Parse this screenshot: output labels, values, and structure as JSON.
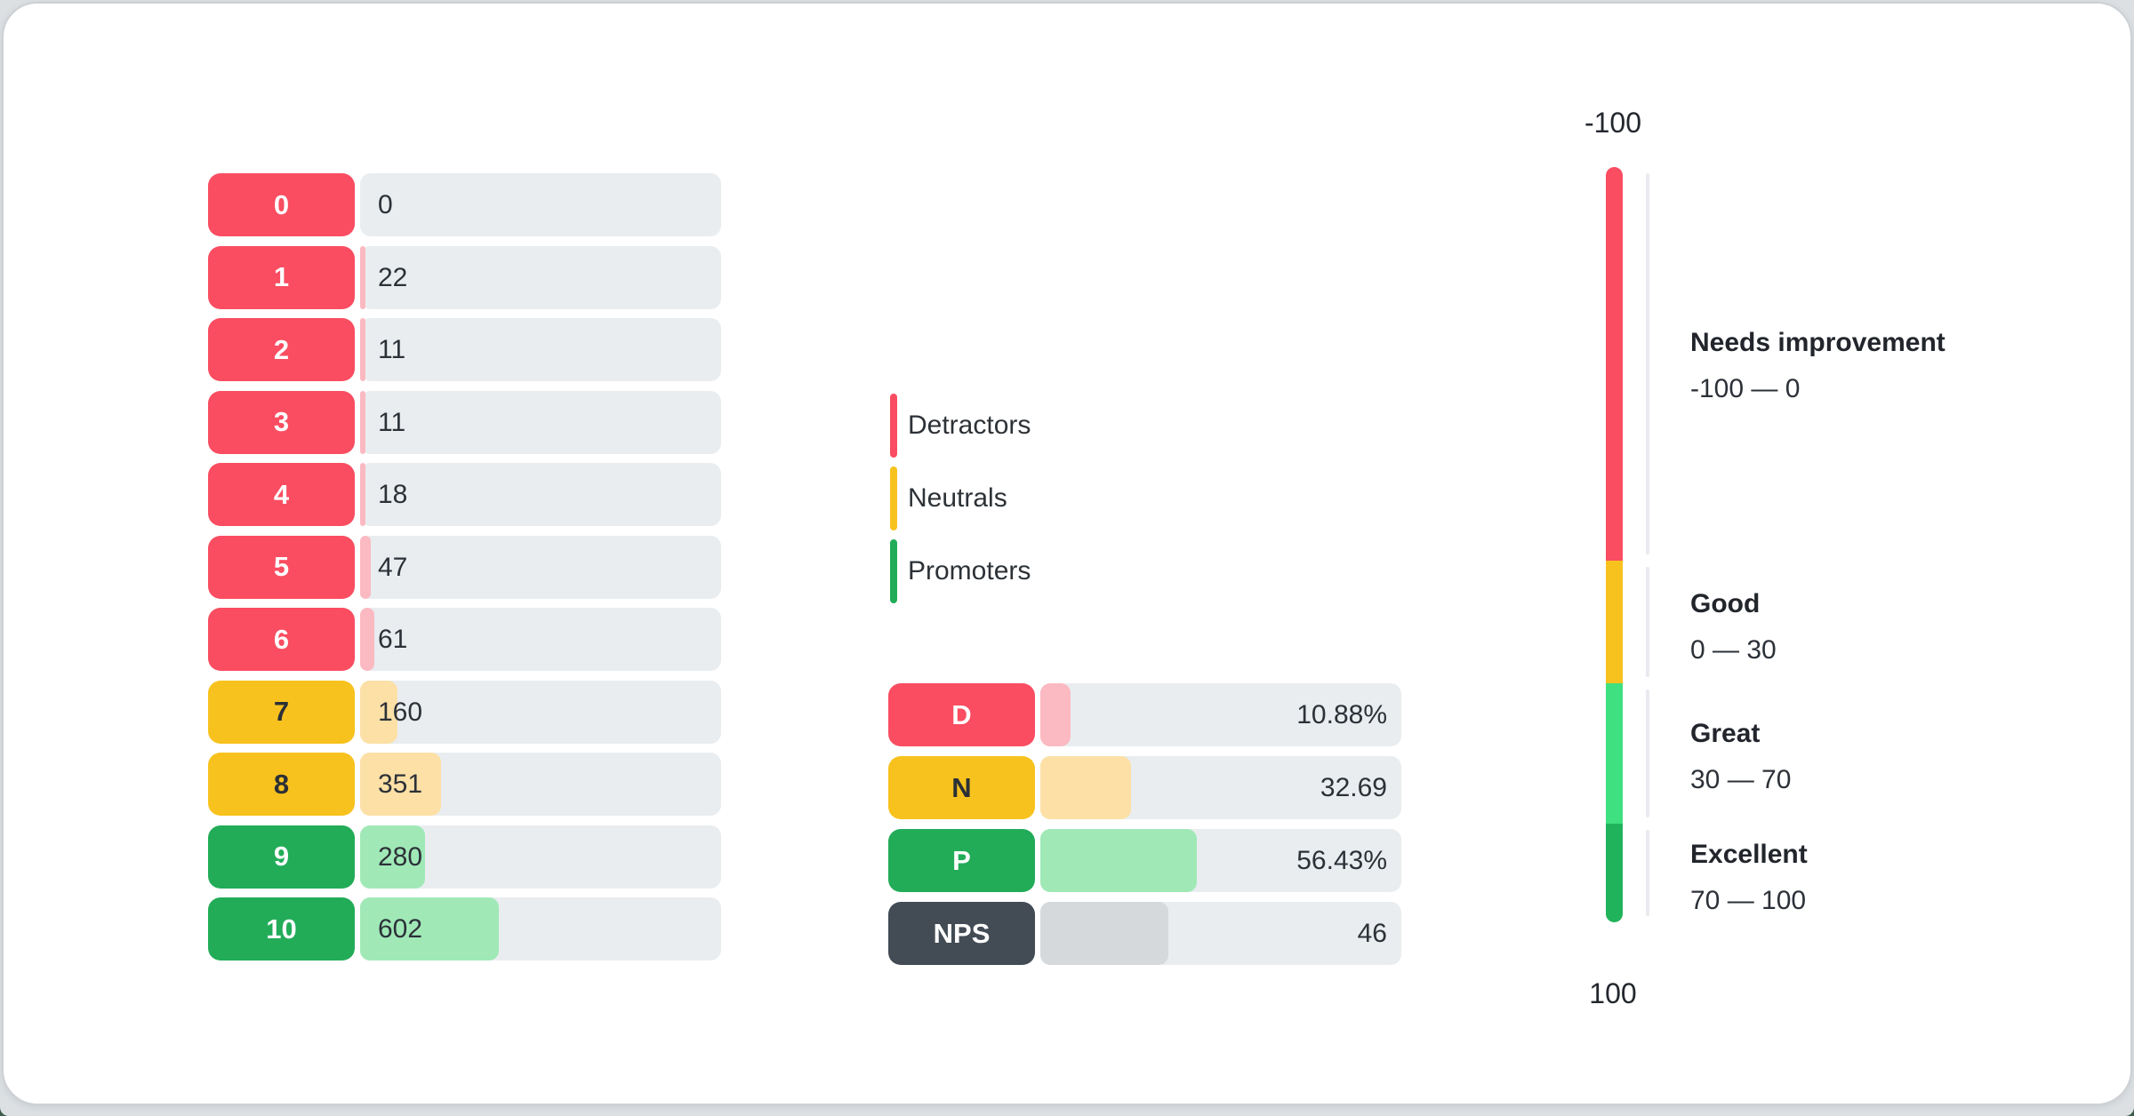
{
  "colors": {
    "detractor": "#FA4D61",
    "detractor_light": "#FBB9C1",
    "neutral": "#F8C21E",
    "neutral_light": "#FCE0A6",
    "promoter": "#22AC58",
    "promoter_light": "#A0E9B7",
    "nps": "#434B54",
    "nps_light": "#D5D9DC",
    "gauge_great": "#3FE07F",
    "gauge_excellent": "#21B35C",
    "track": "#E9EDF0",
    "chip_text_light": "#FFFFFF",
    "chip_text_dark": "#2B3036"
  },
  "distribution": {
    "rows": [
      {
        "score": "0",
        "value": "0",
        "group": "detractor",
        "fill_pct": 0
      },
      {
        "score": "1",
        "value": "22",
        "group": "detractor",
        "fill_pct": 1.41
      },
      {
        "score": "2",
        "value": "11",
        "group": "detractor",
        "fill_pct": 0.7
      },
      {
        "score": "3",
        "value": "11",
        "group": "detractor",
        "fill_pct": 0.7
      },
      {
        "score": "4",
        "value": "18",
        "group": "detractor",
        "fill_pct": 1.15
      },
      {
        "score": "5",
        "value": "47",
        "group": "detractor",
        "fill_pct": 3.01
      },
      {
        "score": "6",
        "value": "61",
        "group": "detractor",
        "fill_pct": 3.9
      },
      {
        "score": "7",
        "value": "160",
        "group": "neutral",
        "fill_pct": 10.24
      },
      {
        "score": "8",
        "value": "351",
        "group": "neutral",
        "fill_pct": 22.46
      },
      {
        "score": "9",
        "value": "280",
        "group": "promoter",
        "fill_pct": 17.91
      },
      {
        "score": "10",
        "value": "602",
        "group": "promoter",
        "fill_pct": 38.52
      }
    ]
  },
  "legend": {
    "items": [
      {
        "label": "Detractors",
        "group": "detractor"
      },
      {
        "label": "Neutrals",
        "group": "neutral"
      },
      {
        "label": "Promoters",
        "group": "promoter"
      }
    ]
  },
  "summary": {
    "rows": [
      {
        "label": "D",
        "value": "10.88%",
        "group": "detractor",
        "fill_pct": 8.4
      },
      {
        "label": "N",
        "value": "32.69",
        "group": "neutral",
        "fill_pct": 25.1
      },
      {
        "label": "P",
        "value": "56.43%",
        "group": "promoter",
        "fill_pct": 43.4
      },
      {
        "label": "NPS",
        "value": "46",
        "group": "nps",
        "fill_pct": 35.4
      }
    ]
  },
  "gauge": {
    "top_label": "-100",
    "bottom_label": "100",
    "segments": [
      {
        "group": "detractor",
        "pct": 52.1
      },
      {
        "group": "neutral",
        "pct": 16.2
      },
      {
        "group": "gauge_great",
        "pct": 18.6
      },
      {
        "group": "gauge_excellent",
        "pct": 13.1
      }
    ],
    "regions": [
      {
        "title": "Needs improvement",
        "range": "-100 — 0"
      },
      {
        "title": "Good",
        "range": "0 — 30"
      },
      {
        "title": "Great",
        "range": "30 — 70"
      },
      {
        "title": "Excellent",
        "range": "70 — 100"
      }
    ]
  },
  "chart_data": [
    {
      "type": "bar",
      "orientation": "horizontal",
      "categories": [
        "0",
        "1",
        "2",
        "3",
        "4",
        "5",
        "6",
        "7",
        "8",
        "9",
        "10"
      ],
      "values": [
        0,
        22,
        11,
        11,
        18,
        47,
        61,
        160,
        351,
        280,
        602
      ],
      "value_labels": [
        "0",
        "22",
        "11",
        "11",
        "18",
        "47",
        "61",
        "160",
        "351",
        "280",
        "602"
      ],
      "color_groups": [
        "detractors",
        "detractors",
        "detractors",
        "detractors",
        "detractors",
        "detractors",
        "detractors",
        "neutrals",
        "neutrals",
        "promoters",
        "promoters"
      ],
      "legend": [
        "Detractors",
        "Neutrals",
        "Promoters"
      ],
      "legend_position": "middle-column-left",
      "grid": false
    },
    {
      "type": "bar",
      "orientation": "horizontal",
      "categories": [
        "D",
        "N",
        "P",
        "NPS"
      ],
      "values": [
        10.88,
        32.69,
        56.43,
        46
      ],
      "value_labels": [
        "10.88%",
        "32.69",
        "56.43%",
        "46"
      ],
      "grid": false
    },
    {
      "type": "gauge",
      "orientation": "vertical",
      "axis_range": [
        -100,
        100
      ],
      "tick_labels": [
        "-100",
        "100"
      ],
      "regions": [
        {
          "label": "Needs improvement",
          "from": -100,
          "to": 0
        },
        {
          "label": "Good",
          "from": 0,
          "to": 30
        },
        {
          "label": "Great",
          "from": 30,
          "to": 70
        },
        {
          "label": "Excellent",
          "from": 70,
          "to": 100
        }
      ]
    }
  ]
}
